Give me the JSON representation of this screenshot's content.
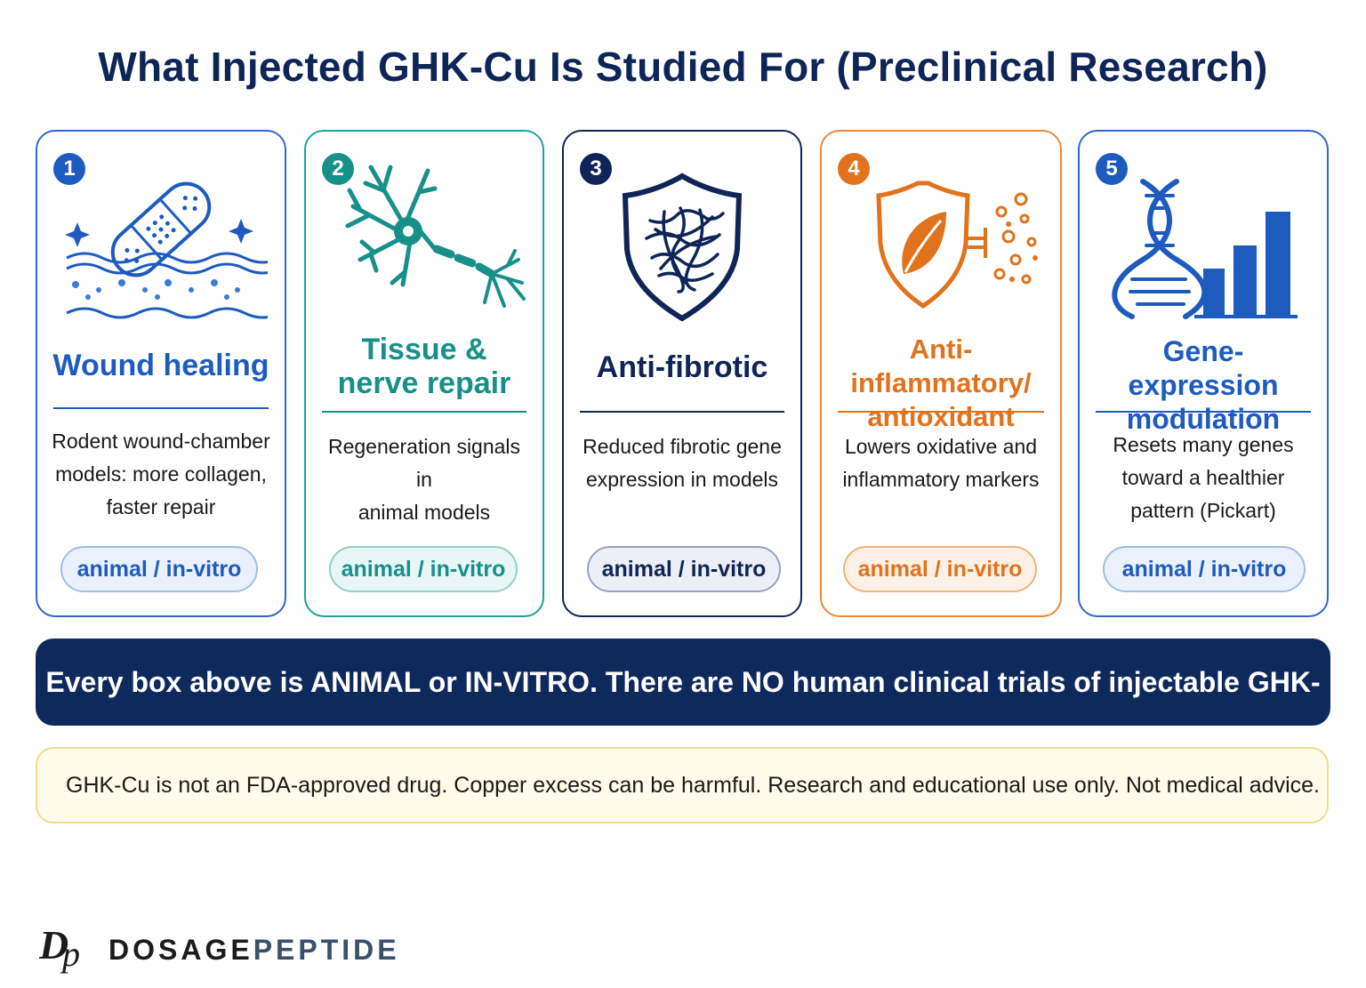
{
  "title": "What Injected GHK-Cu Is Studied For (Preclinical Research)",
  "cards": [
    {
      "number": "1",
      "title_lines": [
        "Wound healing"
      ],
      "description_lines": [
        "Rodent wound-chamber",
        "models: more collagen,",
        "faster repair"
      ],
      "tag": "animal / in-vitro",
      "icon": "bandage-skin-icon",
      "color": "#1e5bbf"
    },
    {
      "number": "2",
      "title_lines": [
        "Tissue &",
        "nerve repair"
      ],
      "description_lines": [
        "Regeneration signals in",
        "animal models"
      ],
      "tag": "animal / in-vitro",
      "icon": "neuron-icon",
      "color": "#17908a"
    },
    {
      "number": "3",
      "title_lines": [
        "Anti-fibrotic"
      ],
      "description_lines": [
        "Reduced fibrotic gene",
        "expression in models"
      ],
      "tag": "animal / in-vitro",
      "icon": "shield-fibers-icon",
      "color": "#0f2557"
    },
    {
      "number": "4",
      "title_lines": [
        "Anti-inflammatory/",
        "antioxidant"
      ],
      "description_lines": [
        "Lowers oxidative and",
        "inflammatory markers"
      ],
      "tag": "animal / in-vitro",
      "icon": "shield-leaf-icon",
      "color": "#e0731c"
    },
    {
      "number": "5",
      "title_lines": [
        "Gene-expression",
        "modulation"
      ],
      "description_lines": [
        "Resets many genes",
        "toward a healthier",
        "pattern (Pickart)"
      ],
      "tag": "animal / in-vitro",
      "icon": "dna-bar-chart-icon",
      "color": "#1e5bbf"
    }
  ],
  "banner": "Every box above is ANIMAL or IN-VITRO. There are NO human clinical trials of injectable GHK-Cu.",
  "disclaimer": "GHK-Cu is not an FDA-approved drug. Copper excess can be harmful. Research and educational use only. Not medical advice.",
  "brand": {
    "part1": "DOSAGE",
    "part2": "PEPTIDE"
  }
}
